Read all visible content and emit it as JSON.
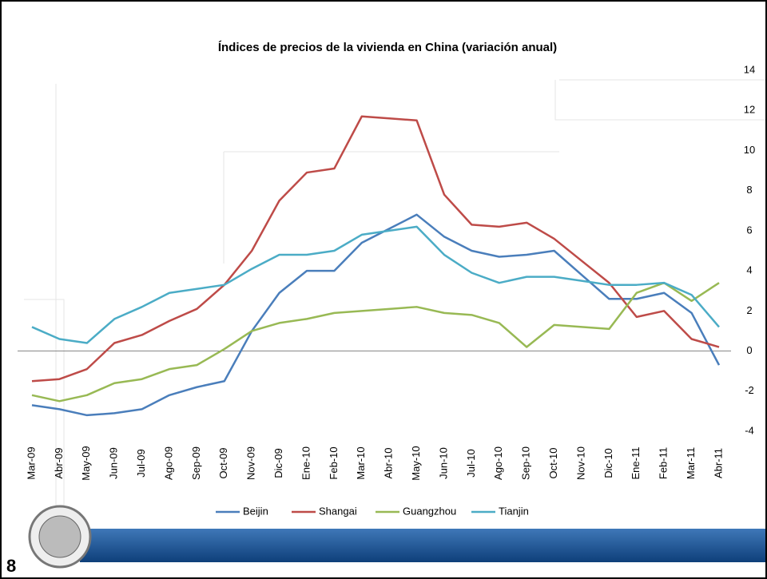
{
  "chart_data": {
    "type": "line",
    "title": "Índices de precios de la vivienda en China (variación anual)",
    "categories": [
      "Mar-09",
      "Abr-09",
      "May-09",
      "Jun-09",
      "Jul-09",
      "Ago-09",
      "Sep-09",
      "Oct-09",
      "Nov-09",
      "Dic-09",
      "Ene-10",
      "Feb-10",
      "Mar-10",
      "Abr-10",
      "May-10",
      "Jun-10",
      "Jul-10",
      "Ago-10",
      "Sep-10",
      "Oct-10",
      "Nov-10",
      "Dic-10",
      "Ene-11",
      "Feb-11",
      "Mar-11",
      "Abr-11"
    ],
    "series": [
      {
        "name": "Beijin",
        "color": "#4a7ebb",
        "values": [
          -2.7,
          -2.9,
          -3.2,
          -3.1,
          -2.9,
          -2.2,
          -1.8,
          -1.5,
          1.0,
          2.9,
          4.0,
          4.0,
          5.4,
          6.1,
          6.8,
          5.7,
          5.0,
          4.7,
          4.8,
          5.0,
          3.8,
          2.6,
          2.6,
          2.9,
          1.9,
          -0.7
        ]
      },
      {
        "name": "Shangai",
        "color": "#be4b48",
        "values": [
          -1.5,
          -1.4,
          -0.9,
          0.4,
          0.8,
          1.5,
          2.1,
          3.3,
          5.0,
          7.5,
          8.9,
          9.1,
          11.7,
          11.6,
          11.5,
          7.8,
          6.3,
          6.2,
          6.4,
          5.6,
          4.5,
          3.4,
          1.7,
          2.0,
          0.6,
          0.2
        ]
      },
      {
        "name": "Guangzhou",
        "color": "#98b954",
        "values": [
          -2.2,
          -2.5,
          -2.2,
          -1.6,
          -1.4,
          -0.9,
          -0.7,
          0.1,
          1.0,
          1.4,
          1.6,
          1.9,
          2.0,
          2.1,
          2.2,
          1.9,
          1.8,
          1.4,
          0.2,
          1.3,
          1.2,
          1.1,
          2.9,
          3.4,
          2.5,
          3.4
        ]
      },
      {
        "name": "Tianjin",
        "color": "#4bacc6",
        "values": [
          1.2,
          0.6,
          0.4,
          1.6,
          2.2,
          2.9,
          3.1,
          3.3,
          4.1,
          4.8,
          4.8,
          5.0,
          5.8,
          6.0,
          6.2,
          4.8,
          3.9,
          3.4,
          3.7,
          3.7,
          3.5,
          3.3,
          3.3,
          3.4,
          2.8,
          1.2
        ]
      }
    ],
    "ylim": [
      -4,
      14
    ],
    "yticks": [
      -4,
      -2,
      0,
      2,
      4,
      6,
      8,
      10,
      12,
      14
    ],
    "axis_side": "right",
    "grid": false
  },
  "slide_number": "8"
}
